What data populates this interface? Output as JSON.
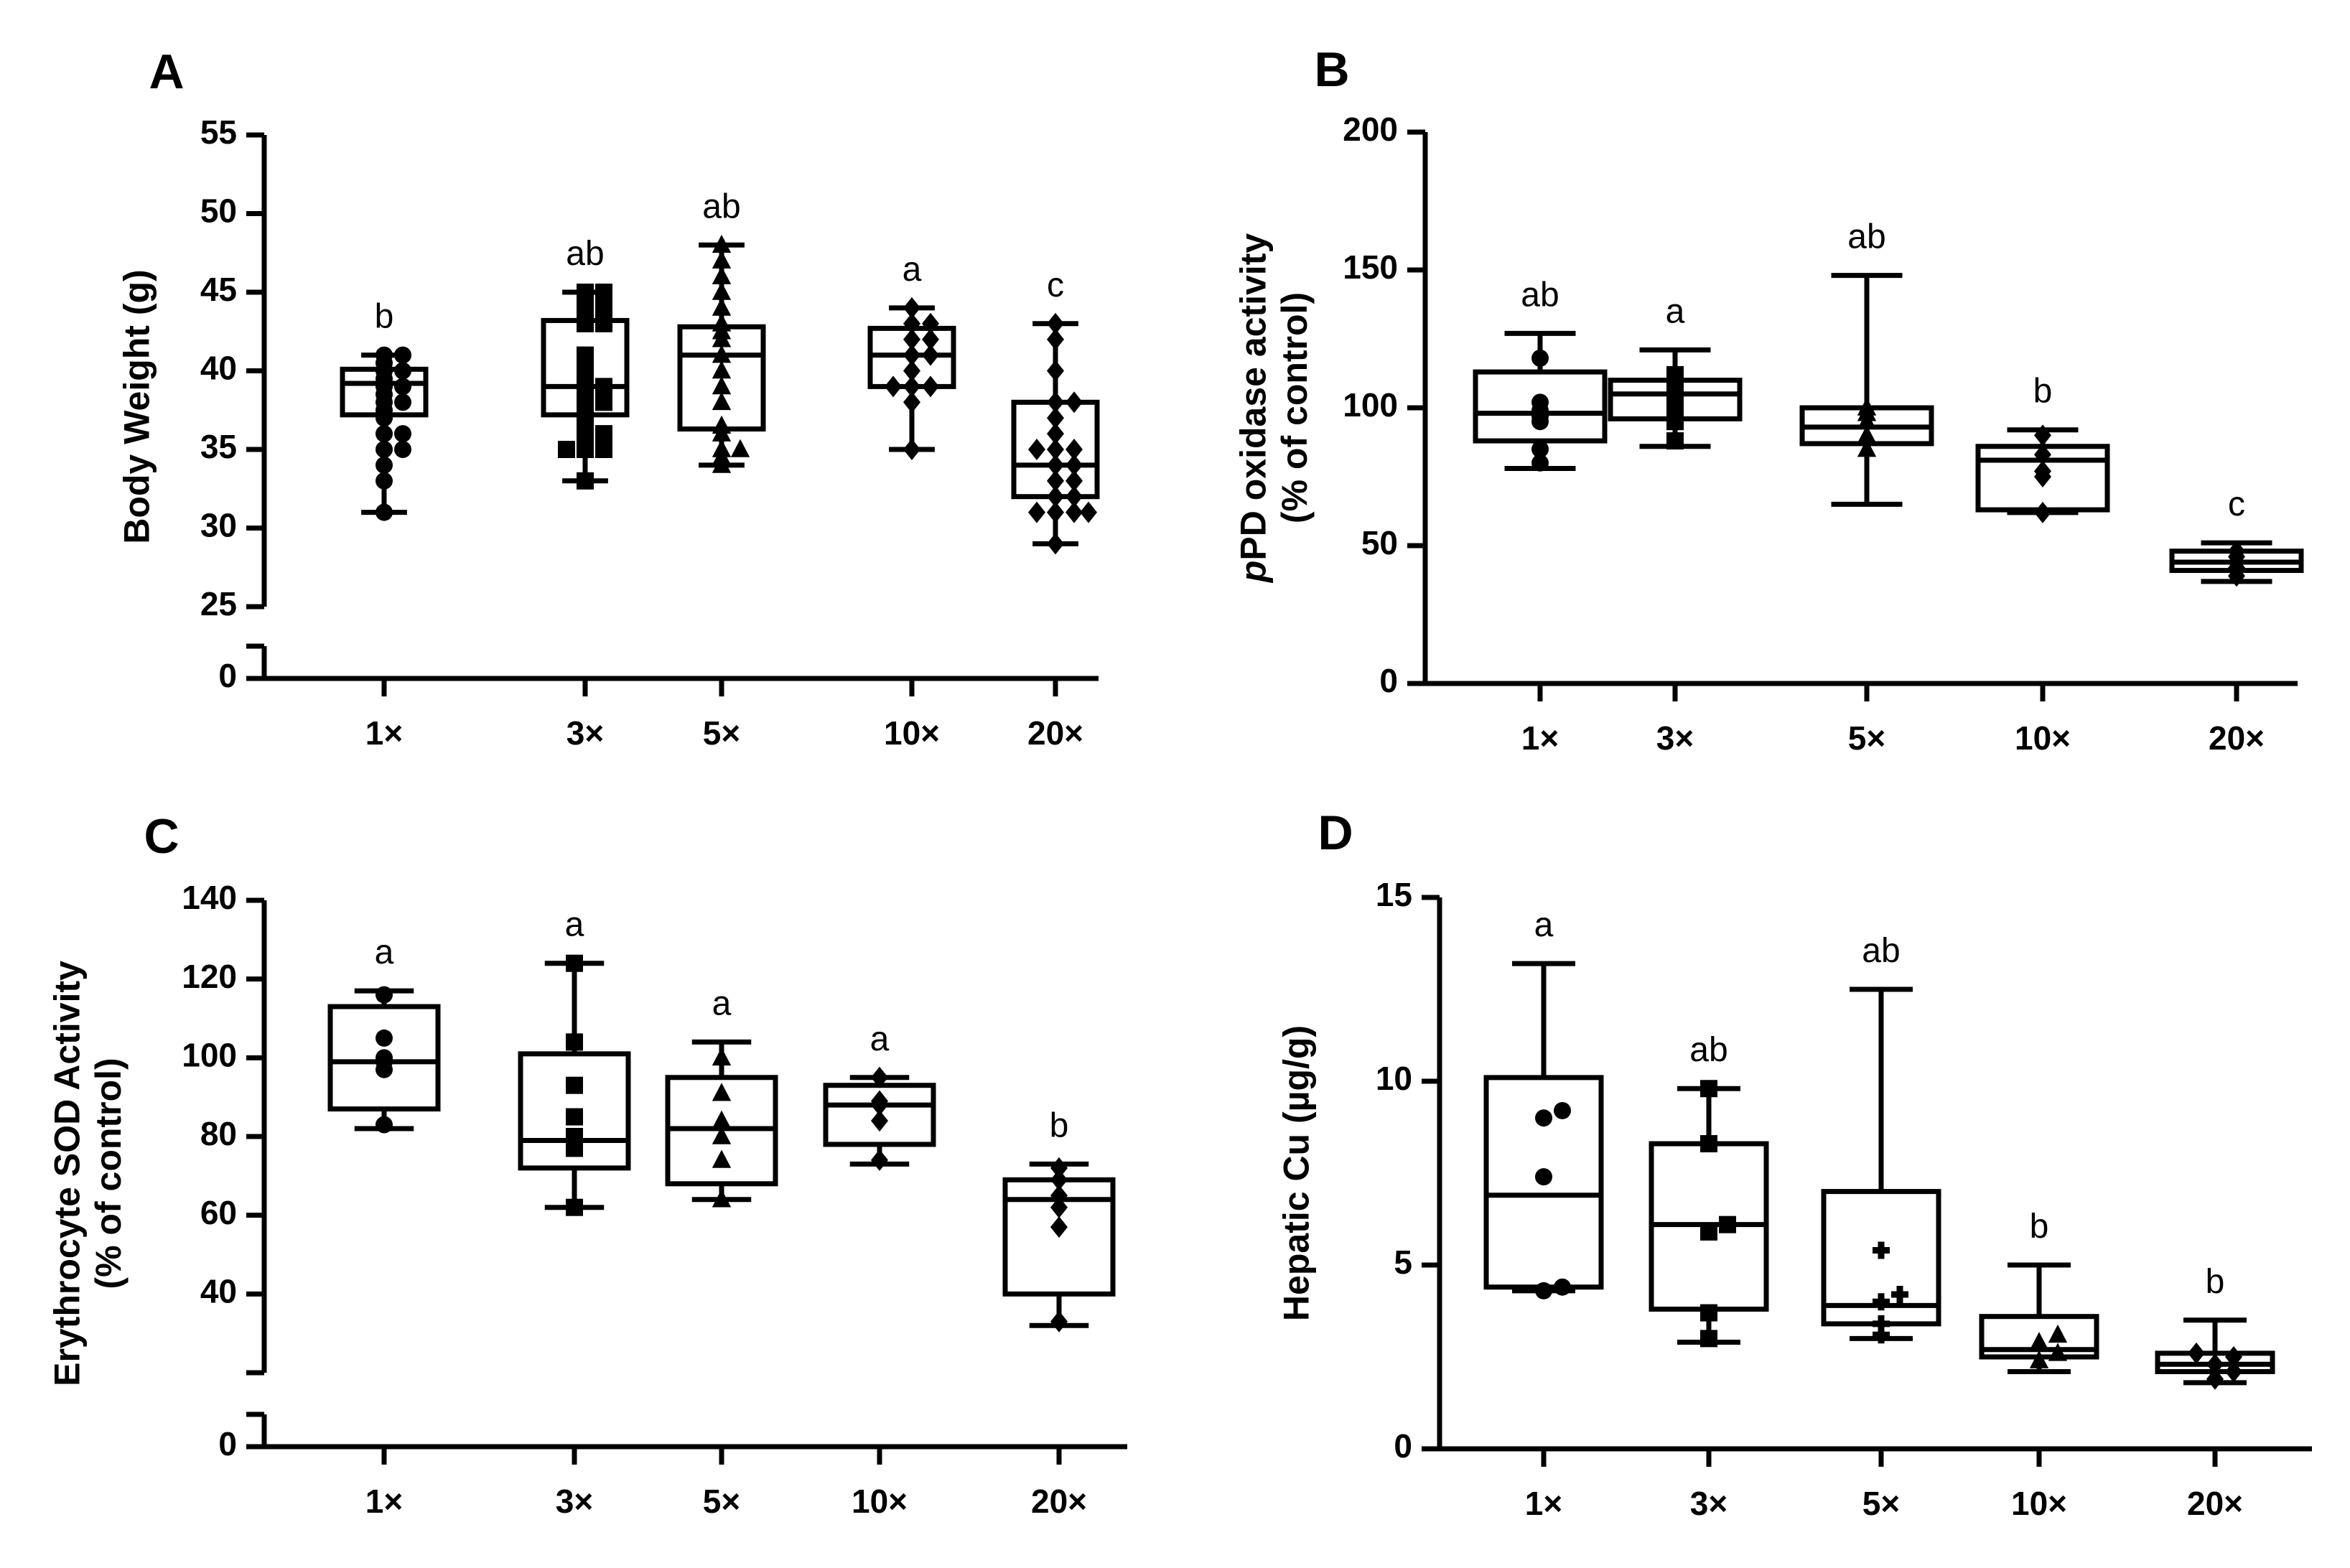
{
  "figure": {
    "panels": [
      "A",
      "B",
      "C",
      "D"
    ]
  },
  "chart_data": [
    {
      "panel": "A",
      "type": "box",
      "ylabel": "Body Weight (g)",
      "ylabel_lines": [
        "Body Weight (g)"
      ],
      "categories": [
        "1×",
        "3×",
        "5×",
        "10×",
        "20×"
      ],
      "yticks": [
        0,
        25,
        30,
        35,
        40,
        45,
        50,
        55
      ],
      "ylim": [
        25,
        55
      ],
      "axis_break": true,
      "marker": [
        "circle",
        "square",
        "triangle",
        "diamond",
        "diamond"
      ],
      "boxes": [
        {
          "min": 31,
          "q1": 37.2,
          "median": 39.2,
          "q3": 40.1,
          "max": 41,
          "points": [
            31,
            33,
            34,
            35,
            35,
            36,
            36,
            37,
            37.5,
            38,
            38,
            38.5,
            39,
            39,
            39.5,
            40,
            40,
            40.5,
            41,
            41
          ]
        },
        {
          "min": 33,
          "q1": 37.2,
          "median": 39,
          "q3": 43.2,
          "max": 45,
          "points": [
            33,
            35,
            35,
            35,
            36,
            36,
            37,
            38,
            38,
            39,
            39,
            40,
            41,
            43,
            43,
            44,
            44,
            45,
            45
          ]
        },
        {
          "min": 34,
          "q1": 36.3,
          "median": 41,
          "q3": 42.8,
          "max": 48,
          "points": [
            34,
            34.5,
            35,
            35,
            36,
            36.5,
            38,
            39,
            40,
            41,
            42,
            42.5,
            43,
            44,
            45,
            46,
            47,
            48
          ]
        },
        {
          "min": 35,
          "q1": 39,
          "median": 41,
          "q3": 42.7,
          "max": 44,
          "points": [
            35,
            38,
            39,
            39,
            39,
            40,
            41,
            41,
            42,
            42,
            43,
            43,
            44
          ]
        },
        {
          "min": 29,
          "q1": 32,
          "median": 34,
          "q3": 38,
          "max": 43,
          "points": [
            29,
            31,
            31,
            31,
            31,
            32,
            32,
            33,
            33,
            34,
            34,
            35,
            35,
            35,
            36,
            37,
            38,
            38,
            40,
            42,
            43
          ]
        }
      ],
      "sig_letters": [
        "b",
        "ab",
        "ab",
        "a",
        "c"
      ]
    },
    {
      "panel": "B",
      "type": "box",
      "ylabel": "pPD oxidase activity (% of control)",
      "ylabel_lines": [
        "pPD oxidase activity",
        "(% of control)"
      ],
      "categories": [
        "1×",
        "3×",
        "5×",
        "10×",
        "20×"
      ],
      "yticks": [
        0,
        50,
        100,
        150,
        200
      ],
      "ylim": [
        0,
        200
      ],
      "axis_break": false,
      "marker": [
        "circle",
        "square",
        "triangle",
        "diamond",
        "diamond"
      ],
      "boxes": [
        {
          "min": 78,
          "q1": 88,
          "median": 98,
          "q3": 113,
          "max": 127,
          "points": [
            80,
            85,
            95,
            97,
            99,
            102,
            118
          ]
        },
        {
          "min": 86,
          "q1": 96,
          "median": 105,
          "q3": 110,
          "max": 121,
          "points": [
            88,
            95,
            100,
            105,
            108,
            112
          ]
        },
        {
          "min": 65,
          "q1": 87,
          "median": 93,
          "q3": 100,
          "max": 148,
          "points": [
            85,
            90,
            95,
            98,
            100
          ]
        },
        {
          "min": 62,
          "q1": 63,
          "median": 81,
          "q3": 86,
          "max": 92,
          "points": [
            62,
            75,
            77,
            83,
            90
          ]
        },
        {
          "min": 37,
          "q1": 41,
          "median": 44,
          "q3": 48,
          "max": 51,
          "points": [
            39,
            42,
            44,
            46,
            48
          ]
        }
      ],
      "sig_letters": [
        "ab",
        "a",
        "ab",
        "b",
        "c"
      ]
    },
    {
      "panel": "C",
      "type": "box",
      "ylabel": "Erythrocyte SOD Activity (% of control)",
      "ylabel_lines": [
        "Erythrocyte SOD Activity",
        "(% of control)"
      ],
      "categories": [
        "1×",
        "3×",
        "5×",
        "10×",
        "20×"
      ],
      "yticks": [
        0,
        40,
        60,
        80,
        100,
        120,
        140
      ],
      "ylim": [
        20,
        140
      ],
      "axis_break": true,
      "marker": [
        "circle",
        "square",
        "triangle",
        "diamond",
        "diamond"
      ],
      "boxes": [
        {
          "min": 82,
          "q1": 87,
          "median": 99,
          "q3": 113,
          "max": 117,
          "points": [
            83,
            97,
            99,
            100,
            105,
            116
          ]
        },
        {
          "min": 62,
          "q1": 72,
          "median": 79,
          "q3": 101,
          "max": 124,
          "points": [
            62,
            77,
            80,
            85,
            93,
            104,
            124
          ]
        },
        {
          "min": 64,
          "q1": 68,
          "median": 82,
          "q3": 95,
          "max": 104,
          "points": [
            64,
            74,
            80,
            84,
            91,
            100
          ]
        },
        {
          "min": 73,
          "q1": 78,
          "median": 88,
          "q3": 93,
          "max": 95,
          "points": [
            74,
            84,
            88,
            89,
            95
          ]
        },
        {
          "min": 32,
          "q1": 40,
          "median": 64,
          "q3": 69,
          "max": 73,
          "points": [
            33,
            57,
            62,
            65,
            69,
            72
          ]
        }
      ],
      "sig_letters": [
        "a",
        "a",
        "a",
        "a",
        "b"
      ]
    },
    {
      "panel": "D",
      "type": "box",
      "ylabel": "Hepatic Cu (µg/g)",
      "ylabel_lines": [
        "Hepatic Cu (µg/g)"
      ],
      "categories": [
        "1×",
        "3×",
        "5×",
        "10×",
        "20×"
      ],
      "yticks": [
        0,
        5,
        10,
        15
      ],
      "ylim": [
        0,
        15
      ],
      "axis_break": false,
      "marker": [
        "circle",
        "square",
        "plus",
        "triangle",
        "diamond"
      ],
      "boxes": [
        {
          "min": 4.3,
          "q1": 4.4,
          "median": 6.9,
          "q3": 10.1,
          "max": 13.2,
          "points": [
            4.3,
            4.4,
            7.4,
            9.0,
            9.2
          ]
        },
        {
          "min": 2.9,
          "q1": 3.8,
          "median": 6.1,
          "q3": 8.3,
          "max": 9.8,
          "points": [
            3.0,
            3.7,
            5.9,
            6.1,
            8.3,
            9.8
          ]
        },
        {
          "min": 3.0,
          "q1": 3.4,
          "median": 3.9,
          "q3": 7.0,
          "max": 12.5,
          "points": [
            3.1,
            3.4,
            4.0,
            4.2,
            5.4
          ]
        },
        {
          "min": 2.1,
          "q1": 2.5,
          "median": 2.7,
          "q3": 3.6,
          "max": 5.0,
          "points": [
            2.4,
            2.6,
            2.9,
            3.1
          ]
        },
        {
          "min": 1.8,
          "q1": 2.1,
          "median": 2.3,
          "q3": 2.6,
          "max": 3.5,
          "points": [
            1.9,
            2.1,
            2.3,
            2.5,
            2.6
          ]
        }
      ],
      "sig_letters": [
        "a",
        "ab",
        "ab",
        "b",
        "b"
      ]
    }
  ]
}
